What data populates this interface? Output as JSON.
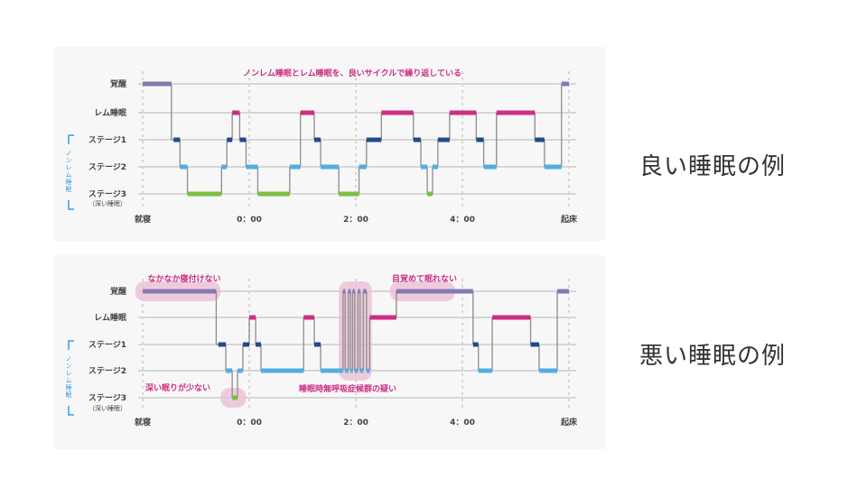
{
  "slide": {
    "caption_good": "良い睡眠の例",
    "caption_bad": "悪い睡眠の例"
  },
  "colors": {
    "wake": "#8479b4",
    "rem": "#cc2e82",
    "stage1": "#1f4b8a",
    "stage2": "#54ade0",
    "stage3": "#7bbf44",
    "connector": "#8c8c8c",
    "gridline": "#d6d6d6",
    "highlight": "#ebbfd4",
    "annotation_text": "#cc2e82",
    "bracket": "#3a9fd8"
  },
  "chart_data": [
    {
      "type": "line",
      "title": "",
      "y_categories": [
        "覚醒",
        "レム睡眠",
        "ステージ1",
        "ステージ2",
        "ステージ3"
      ],
      "y_bracket_label": "ノンレム睡眠",
      "y_bottom_sublabel": "（深い睡眠）",
      "x_ticks": [
        {
          "t": 0,
          "label": "就寝"
        },
        {
          "t": 1.0,
          "label": "0：00"
        },
        {
          "t": 2.0,
          "label": "2：00"
        },
        {
          "t": 3.0,
          "label": "4：00"
        },
        {
          "t": 4.0,
          "label": "起床"
        }
      ],
      "annotations": [
        {
          "text": "ノンレム睡眠とレム睡眠を、良いサイクルで繰り返している"
        }
      ],
      "highlights": [],
      "segments": [
        {
          "s": 0,
          "e": 0.27,
          "level": 0
        },
        {
          "s": 0.29,
          "e": 0.35,
          "level": 2
        },
        {
          "s": 0.35,
          "e": 0.42,
          "level": 3
        },
        {
          "s": 0.42,
          "e": 0.74,
          "level": 4
        },
        {
          "s": 0.74,
          "e": 0.79,
          "level": 3
        },
        {
          "s": 0.79,
          "e": 0.84,
          "level": 2
        },
        {
          "s": 0.84,
          "e": 0.91,
          "level": 1
        },
        {
          "s": 0.91,
          "e": 0.97,
          "level": 2
        },
        {
          "s": 0.97,
          "e": 1.08,
          "level": 3
        },
        {
          "s": 1.08,
          "e": 1.38,
          "level": 4
        },
        {
          "s": 1.38,
          "e": 1.48,
          "level": 3
        },
        {
          "s": 1.48,
          "e": 1.61,
          "level": 1
        },
        {
          "s": 1.61,
          "e": 1.67,
          "level": 2
        },
        {
          "s": 1.67,
          "e": 1.84,
          "level": 3
        },
        {
          "s": 1.84,
          "e": 2.03,
          "level": 4
        },
        {
          "s": 2.03,
          "e": 2.1,
          "level": 3
        },
        {
          "s": 2.1,
          "e": 2.24,
          "level": 2
        },
        {
          "s": 2.24,
          "e": 2.54,
          "level": 1
        },
        {
          "s": 2.54,
          "e": 2.61,
          "level": 2
        },
        {
          "s": 2.61,
          "e": 2.67,
          "level": 3
        },
        {
          "s": 2.67,
          "e": 2.72,
          "level": 4
        },
        {
          "s": 2.72,
          "e": 2.77,
          "level": 3
        },
        {
          "s": 2.77,
          "e": 2.88,
          "level": 2
        },
        {
          "s": 2.88,
          "e": 3.13,
          "level": 1
        },
        {
          "s": 3.13,
          "e": 3.2,
          "level": 2
        },
        {
          "s": 3.2,
          "e": 3.32,
          "level": 3
        },
        {
          "s": 3.32,
          "e": 3.68,
          "level": 1
        },
        {
          "s": 3.68,
          "e": 3.77,
          "level": 2
        },
        {
          "s": 3.77,
          "e": 3.93,
          "level": 3
        },
        {
          "s": 3.93,
          "e": 4.0,
          "level": 0
        }
      ]
    },
    {
      "type": "line",
      "title": "",
      "y_categories": [
        "覚醒",
        "レム睡眠",
        "ステージ1",
        "ステージ2",
        "ステージ3"
      ],
      "y_bracket_label": "ノンレム睡眠",
      "y_bottom_sublabel": "（深い睡眠）",
      "x_ticks": [
        {
          "t": 0,
          "label": "就寝"
        },
        {
          "t": 1.0,
          "label": "0：00"
        },
        {
          "t": 2.0,
          "label": "2：00"
        },
        {
          "t": 3.0,
          "label": "4：00"
        },
        {
          "t": 4.0,
          "label": "起床"
        }
      ],
      "annotations": [
        {
          "text": "なかなか寝付けない"
        },
        {
          "text": "目覚めて眠れない"
        },
        {
          "text": "深い眠りが少ない"
        },
        {
          "text": "睡眠時無呼吸症候群の疑い"
        }
      ],
      "highlights": [
        {
          "from_t": -0.07,
          "to_t": 0.73,
          "from_level": 0,
          "to_level": 0
        },
        {
          "from_t": 2.32,
          "to_t": 2.93,
          "from_level": 0,
          "to_level": 0
        },
        {
          "from_t": 1.84,
          "to_t": 2.15,
          "from_level": 0,
          "to_level": 3
        },
        {
          "from_t": 0.73,
          "to_t": 0.97,
          "from_level": 4,
          "to_level": 4
        }
      ],
      "segments": [
        {
          "s": 0,
          "e": 0.69,
          "level": 0
        },
        {
          "s": 0.71,
          "e": 0.78,
          "level": 2
        },
        {
          "s": 0.78,
          "e": 0.84,
          "level": 3
        },
        {
          "s": 0.84,
          "e": 0.89,
          "level": 4
        },
        {
          "s": 0.89,
          "e": 0.94,
          "level": 3
        },
        {
          "s": 0.94,
          "e": 1.0,
          "level": 2
        },
        {
          "s": 1.0,
          "e": 1.06,
          "level": 1
        },
        {
          "s": 1.06,
          "e": 1.11,
          "level": 2
        },
        {
          "s": 1.11,
          "e": 1.51,
          "level": 3
        },
        {
          "s": 1.51,
          "e": 1.61,
          "level": 1
        },
        {
          "s": 1.61,
          "e": 1.67,
          "level": 2
        },
        {
          "s": 1.67,
          "e": 1.88,
          "level": 3
        },
        {
          "s": 1.88,
          "e": 1.9,
          "level": 0
        },
        {
          "s": 1.9,
          "e": 1.93,
          "level": 3
        },
        {
          "s": 1.93,
          "e": 1.95,
          "level": 0
        },
        {
          "s": 1.95,
          "e": 1.97,
          "level": 3
        },
        {
          "s": 1.97,
          "e": 1.99,
          "level": 0
        },
        {
          "s": 1.99,
          "e": 2.02,
          "level": 3
        },
        {
          "s": 2.02,
          "e": 2.04,
          "level": 0
        },
        {
          "s": 2.04,
          "e": 2.07,
          "level": 3
        },
        {
          "s": 2.07,
          "e": 2.1,
          "level": 0
        },
        {
          "s": 2.1,
          "e": 2.13,
          "level": 3
        },
        {
          "s": 2.13,
          "e": 2.38,
          "level": 1
        },
        {
          "s": 2.38,
          "e": 3.1,
          "level": 0
        },
        {
          "s": 3.1,
          "e": 3.15,
          "level": 2
        },
        {
          "s": 3.15,
          "e": 3.28,
          "level": 3
        },
        {
          "s": 3.28,
          "e": 3.64,
          "level": 1
        },
        {
          "s": 3.64,
          "e": 3.72,
          "level": 2
        },
        {
          "s": 3.72,
          "e": 3.89,
          "level": 3
        },
        {
          "s": 3.89,
          "e": 4.0,
          "level": 0
        }
      ]
    }
  ]
}
